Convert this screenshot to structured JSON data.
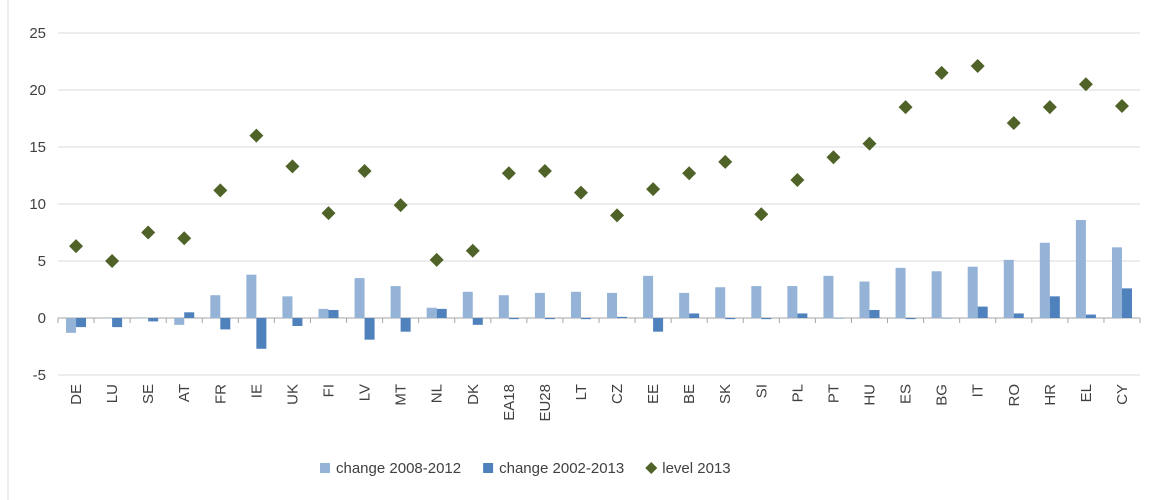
{
  "chart_data": {
    "type": "bar",
    "title": "",
    "xlabel": "",
    "ylabel": "",
    "ylim": [
      -5,
      25
    ],
    "yticks": [
      -5,
      0,
      5,
      10,
      15,
      20,
      25
    ],
    "grid": true,
    "legend_position": "bottom",
    "categories": [
      "DE",
      "LU",
      "SE",
      "AT",
      "FR",
      "IE",
      "UK",
      "FI",
      "LV",
      "MT",
      "NL",
      "DK",
      "EA18",
      "EU28",
      "LT",
      "CZ",
      "EE",
      "BE",
      "SK",
      "SI",
      "PL",
      "PT",
      "HU",
      "ES",
      "BG",
      "IT",
      "RO",
      "HR",
      "EL",
      "CY"
    ],
    "series": [
      {
        "name": "change 2008-2012",
        "kind": "bar",
        "color": "#95b3d7",
        "values": [
          -1.3,
          0,
          0,
          -0.6,
          2.0,
          3.8,
          1.9,
          0.8,
          3.5,
          2.8,
          0.9,
          2.3,
          2.0,
          2.2,
          2.3,
          2.2,
          3.7,
          2.2,
          2.7,
          2.8,
          2.8,
          3.7,
          3.2,
          4.4,
          4.1,
          4.5,
          5.1,
          6.6,
          8.6,
          6.2
        ]
      },
      {
        "name": "change 2002-2013",
        "kind": "bar",
        "color": "#4f81bd",
        "values": [
          -0.8,
          -0.8,
          -0.3,
          0.5,
          -1.0,
          -2.7,
          -0.7,
          0.7,
          -1.9,
          -1.2,
          0.8,
          -0.6,
          -0.1,
          -0.1,
          -0.1,
          0.1,
          -1.2,
          0.4,
          -0.1,
          -0.1,
          0.4,
          0,
          0.7,
          -0.1,
          0,
          1.0,
          0.4,
          1.9,
          0.3,
          2.6
        ]
      },
      {
        "name": "level 2013",
        "kind": "scatter",
        "marker": "diamond",
        "color": "#4f6228",
        "values": [
          6.3,
          5.0,
          7.5,
          7.0,
          11.2,
          16.0,
          13.3,
          9.2,
          12.9,
          9.9,
          5.1,
          5.9,
          12.7,
          12.9,
          11.0,
          9.0,
          11.3,
          12.7,
          13.7,
          9.1,
          12.1,
          14.1,
          15.3,
          18.5,
          21.5,
          22.1,
          17.1,
          18.5,
          20.5,
          18.6
        ]
      }
    ]
  }
}
